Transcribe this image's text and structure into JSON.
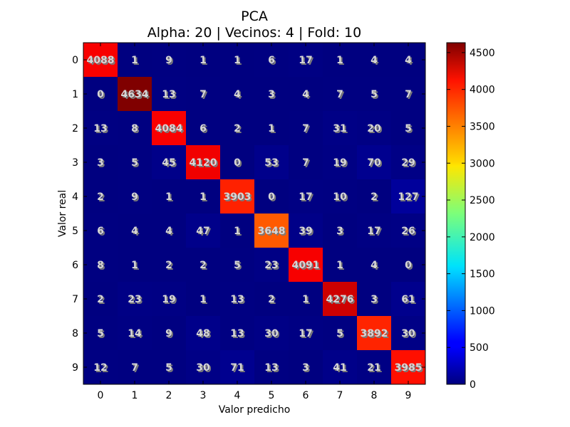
{
  "chart_data": {
    "type": "heatmap",
    "title": "PCA",
    "subtitle": "Alpha: 20 | Vecinos: 4 | Fold: 10",
    "xlabel": "Valor predicho",
    "ylabel": "Valor real",
    "x_categories": [
      "0",
      "1",
      "2",
      "3",
      "4",
      "5",
      "6",
      "7",
      "8",
      "9"
    ],
    "y_categories": [
      "0",
      "1",
      "2",
      "3",
      "4",
      "5",
      "6",
      "7",
      "8",
      "9"
    ],
    "matrix": [
      [
        4088,
        1,
        9,
        1,
        1,
        6,
        17,
        1,
        4,
        4
      ],
      [
        0,
        4634,
        13,
        7,
        4,
        3,
        4,
        7,
        5,
        7
      ],
      [
        13,
        8,
        4084,
        6,
        2,
        1,
        7,
        31,
        20,
        5
      ],
      [
        3,
        5,
        45,
        4120,
        0,
        53,
        7,
        19,
        70,
        29
      ],
      [
        2,
        9,
        1,
        1,
        3903,
        0,
        17,
        10,
        2,
        127
      ],
      [
        6,
        4,
        4,
        47,
        1,
        3648,
        39,
        3,
        17,
        26
      ],
      [
        8,
        1,
        2,
        2,
        5,
        23,
        4091,
        1,
        4,
        0
      ],
      [
        2,
        23,
        19,
        1,
        13,
        2,
        1,
        4276,
        3,
        61
      ],
      [
        5,
        14,
        9,
        48,
        13,
        30,
        17,
        5,
        3892,
        30
      ],
      [
        12,
        7,
        5,
        30,
        71,
        13,
        3,
        41,
        21,
        3985
      ]
    ],
    "colormap": "jet",
    "vmin": 0,
    "vmax": 4634,
    "colorbar_ticks": [
      0,
      500,
      1000,
      1500,
      2000,
      2500,
      3000,
      3500,
      4000,
      4500
    ],
    "colorbar_tick_labels": [
      "0",
      "500",
      "1000",
      "1500",
      "2000",
      "2500",
      "3000",
      "3500",
      "4000",
      "4500"
    ],
    "grid": false
  }
}
